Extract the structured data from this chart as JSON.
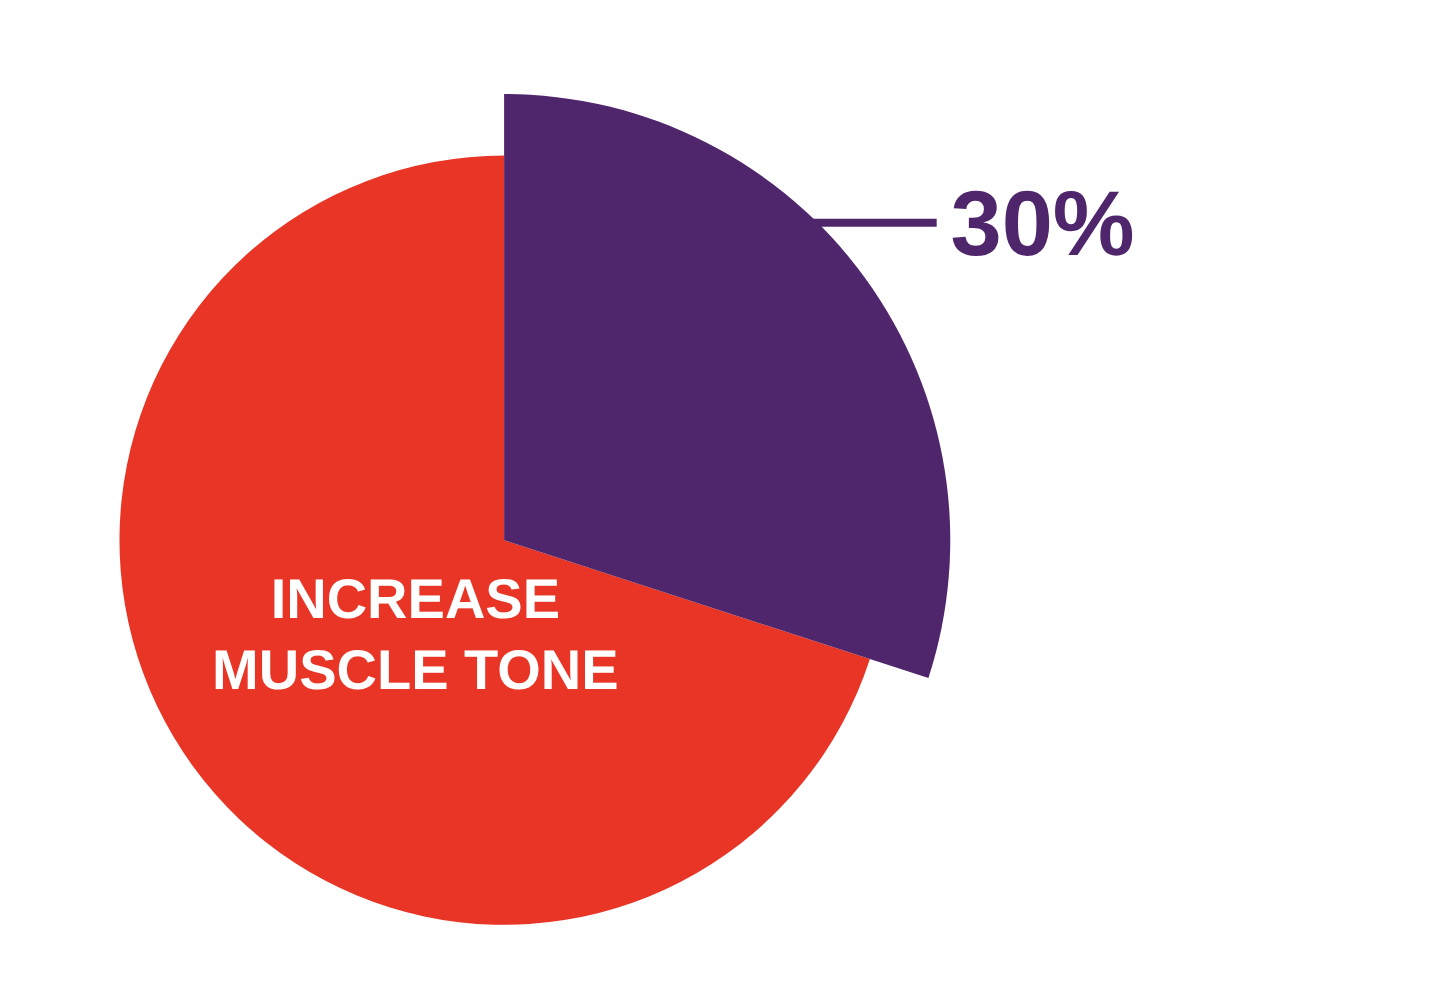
{
  "chart_data": {
    "type": "pie",
    "categories": [
      null,
      null
    ],
    "values": [
      30,
      70
    ],
    "colors": [
      "#4f266b",
      "#e83526"
    ],
    "value_labels": [
      "30%",
      null
    ],
    "annotations": [
      "INCREASE MUSCLE TONE"
    ]
  }
}
